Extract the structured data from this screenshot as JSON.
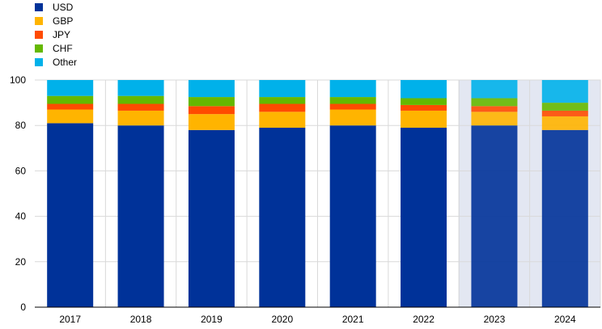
{
  "chart_data": {
    "type": "bar",
    "stacked": true,
    "categories": [
      "2017",
      "2018",
      "2019",
      "2020",
      "2021",
      "2022",
      "2023",
      "2024"
    ],
    "series": [
      {
        "name": "USD",
        "color": "#003299",
        "values": [
          81,
          80,
          78,
          79,
          80,
          79,
          80,
          78
        ]
      },
      {
        "name": "GBP",
        "color": "#FFB400",
        "values": [
          6,
          6.5,
          7,
          7,
          7,
          7.5,
          6,
          6
        ]
      },
      {
        "name": "JPY",
        "color": "#FF4B00",
        "values": [
          2.5,
          3,
          3.5,
          3.5,
          2.5,
          2.5,
          2.5,
          2.5
        ]
      },
      {
        "name": "CHF",
        "color": "#65B800",
        "values": [
          3.5,
          3.5,
          4,
          3,
          3,
          3,
          3.5,
          3.5
        ]
      },
      {
        "name": "Other",
        "color": "#00B1EA",
        "values": [
          7,
          7,
          7.5,
          7.5,
          7.5,
          8,
          8,
          10
        ]
      }
    ],
    "highlighted_categories": [
      "2023",
      "2024"
    ],
    "ylim": [
      0,
      100
    ],
    "yticks": [
      0,
      20,
      40,
      60,
      80,
      100
    ],
    "title": "",
    "xlabel": "",
    "ylabel": "",
    "grid": true,
    "legend": {
      "placement": "top-left"
    }
  }
}
